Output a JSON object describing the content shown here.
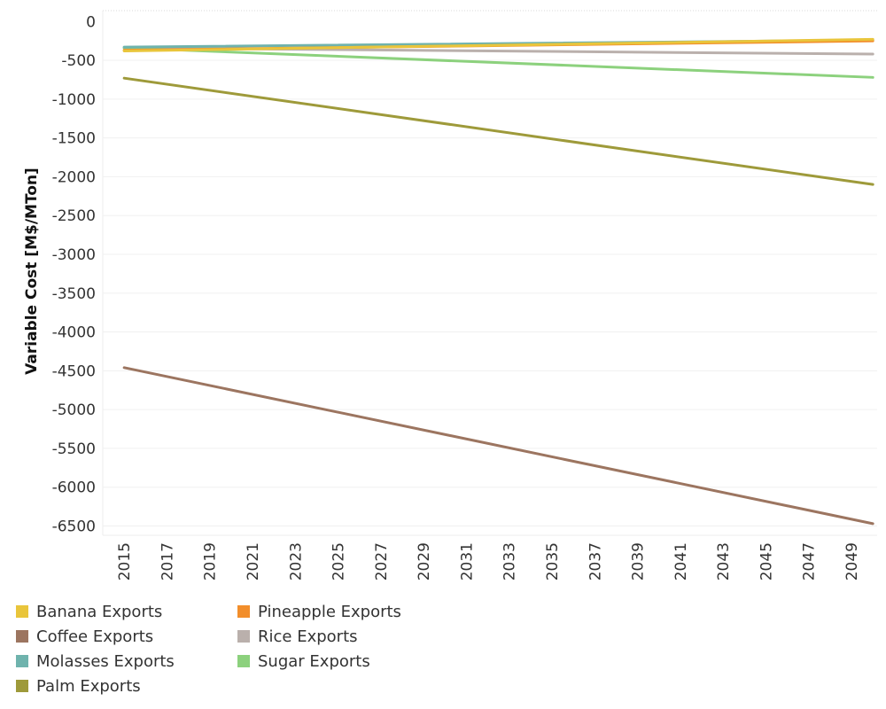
{
  "chart_data": {
    "type": "line",
    "title": "",
    "xlabel": "",
    "ylabel": "Variable Cost [M$/MTon]",
    "x": [
      2015,
      2050
    ],
    "x_tick_labels": [
      "2015",
      "2017",
      "2019",
      "2021",
      "2023",
      "2025",
      "2027",
      "2029",
      "2031",
      "2033",
      "2035",
      "2037",
      "2039",
      "2041",
      "2043",
      "2045",
      "2047",
      "2049"
    ],
    "y_tick_labels": [
      "0",
      "-500",
      "-1000",
      "-1500",
      "-2000",
      "-2500",
      "-3000",
      "-3500",
      "-4000",
      "-4500",
      "-5000",
      "-5500",
      "-6000",
      "-6500"
    ],
    "y_ticks": [
      0,
      -500,
      -1000,
      -1500,
      -2000,
      -2500,
      -3000,
      -3500,
      -4000,
      -4500,
      -5000,
      -5500,
      -6000,
      -6500
    ],
    "ylim": [
      -6620,
      140
    ],
    "xlim": [
      2014.0,
      2050.2
    ],
    "grid": true,
    "legend_position": "bottom-left",
    "series": [
      {
        "name": "Banana Exports",
        "color": "#E9C53B",
        "values": [
          -380,
          -230
        ]
      },
      {
        "name": "Coffee Exports",
        "color": "#9C7560",
        "values": [
          -4460,
          -6470
        ]
      },
      {
        "name": "Molasses Exports",
        "color": "#6FB3AD",
        "values": [
          -330,
          -240
        ]
      },
      {
        "name": "Palm Exports",
        "color": "#9E9A3A",
        "values": [
          -730,
          -2100
        ]
      },
      {
        "name": "Pineapple Exports",
        "color": "#F28E2B",
        "values": [
          -370,
          -250
        ]
      },
      {
        "name": "Rice Exports",
        "color": "#BAB0AC",
        "values": [
          -340,
          -420
        ]
      },
      {
        "name": "Sugar Exports",
        "color": "#8CD17D",
        "values": [
          -340,
          -720
        ]
      }
    ],
    "draw_order": [
      5,
      6,
      2,
      4,
      0,
      3,
      1
    ]
  },
  "legend": {
    "items": [
      {
        "label": "Banana Exports",
        "color": "#E9C53B"
      },
      {
        "label": "Coffee Exports",
        "color": "#9C7560"
      },
      {
        "label": "Molasses Exports",
        "color": "#6FB3AD"
      },
      {
        "label": "Palm Exports",
        "color": "#9E9A3A"
      },
      {
        "label": "Pineapple Exports",
        "color": "#F28E2B"
      },
      {
        "label": "Rice Exports",
        "color": "#BAB0AC"
      },
      {
        "label": "Sugar Exports",
        "color": "#8CD17D"
      }
    ]
  }
}
